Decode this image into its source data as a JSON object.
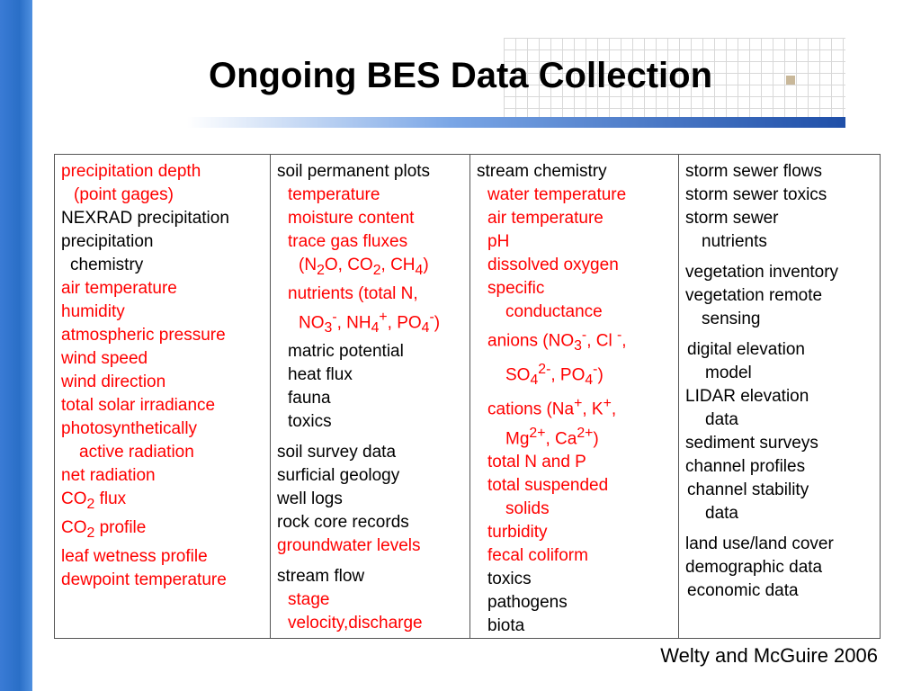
{
  "title": "Ongoing BES Data Collection",
  "credit": "Welty and McGuire 2006",
  "colors": {
    "highlight": "#ff0000",
    "normal": "#000000",
    "accent_bar": "#2a6fc7"
  },
  "columns": [
    {
      "lines": [
        {
          "t": "precipitation depth",
          "red": true
        },
        {
          "t": "(point gages)",
          "red": true,
          "ind": 14
        },
        {
          "t": "NEXRAD precipitation"
        },
        {
          "t": "precipitation"
        },
        {
          "t": "chemistry",
          "ind": 10
        },
        {
          "t": "air temperature",
          "red": true
        },
        {
          "t": "humidity",
          "red": true
        },
        {
          "t": "atmospheric pressure",
          "red": true
        },
        {
          "t": "wind speed",
          "red": true
        },
        {
          "t": "wind direction",
          "red": true
        },
        {
          "t": "total solar irradiance",
          "red": true
        },
        {
          "t": "photosynthetically",
          "red": true
        },
        {
          "t": "active radiation",
          "red": true,
          "ind": 20
        },
        {
          "t": "net radiation",
          "red": true
        },
        {
          "h": "CO<sub>2</sub> flux",
          "red": true
        },
        {
          "h": "CO<sub>2</sub> profile",
          "red": true
        },
        {
          "t": "leaf wetness profile",
          "red": true
        },
        {
          "t": "dewpoint temperature",
          "red": true
        }
      ]
    },
    {
      "lines": [
        {
          "t": "soil permanent plots"
        },
        {
          "t": "temperature",
          "red": true,
          "ind": 12
        },
        {
          "t": "moisture content",
          "red": true,
          "ind": 12
        },
        {
          "t": "trace gas fluxes",
          "red": true,
          "ind": 12
        },
        {
          "h": "(N<sub>2</sub>O, CO<sub>2</sub>, CH<sub>4</sub>)",
          "red": true,
          "ind": 24
        },
        {
          "t": "nutrients (total N,",
          "red": true,
          "ind": 12
        },
        {
          "h": "NO<sub>3</sub><sup>-</sup>, NH<sub>4</sub><sup>+</sup>, PO<sub>4</sub><sup>-</sup>)",
          "red": true,
          "ind": 24
        },
        {
          "t": "matric potential",
          "ind": 12
        },
        {
          "t": "heat flux",
          "ind": 12
        },
        {
          "t": "fauna",
          "ind": 12
        },
        {
          "t": "toxics",
          "ind": 12
        },
        {
          "t": "soil survey data",
          "gap": true
        },
        {
          "t": "surficial geology"
        },
        {
          "t": "well logs"
        },
        {
          "t": "rock core records"
        },
        {
          "t": "groundwater levels",
          "red": true
        },
        {
          "t": "stream flow",
          "gap": true
        },
        {
          "t": "stage",
          "red": true,
          "ind": 12
        },
        {
          "t": "velocity,discharge",
          "red": true,
          "ind": 12
        }
      ]
    },
    {
      "lines": [
        {
          "t": "stream chemistry"
        },
        {
          "t": "water temperature",
          "red": true,
          "ind": 12
        },
        {
          "t": "air temperature",
          "red": true,
          "ind": 12
        },
        {
          "t": "pH",
          "red": true,
          "ind": 12
        },
        {
          "t": "dissolved oxygen",
          "red": true,
          "ind": 12
        },
        {
          "t": "specific",
          "red": true,
          "ind": 12
        },
        {
          "t": "conductance",
          "red": true,
          "ind": 32
        },
        {
          "h": "anions (NO<sub>3</sub><sup>-</sup>, Cl <sup>-</sup>,",
          "red": true,
          "ind": 12
        },
        {
          "h": "SO<sub>4</sub><sup>2-</sup>, PO<sub>4</sub><sup>-</sup>)",
          "red": true,
          "ind": 32
        },
        {
          "h": "cations (Na<sup>+</sup>, K<sup>+</sup>,",
          "red": true,
          "ind": 12
        },
        {
          "h": "Mg<sup>2+</sup>, Ca<sup>2+</sup>)",
          "red": true,
          "ind": 32
        },
        {
          "t": "total N and P",
          "red": true,
          "ind": 12
        },
        {
          "t": "total suspended",
          "red": true,
          "ind": 12
        },
        {
          "t": "solids",
          "red": true,
          "ind": 32
        },
        {
          "t": "turbidity",
          "red": true,
          "ind": 12
        },
        {
          "t": "fecal coliform",
          "red": true,
          "ind": 12
        },
        {
          "t": "toxics",
          "ind": 12
        },
        {
          "t": "pathogens",
          "ind": 12
        },
        {
          "t": "biota",
          "ind": 12
        }
      ]
    },
    {
      "lines": [
        {
          "t": "storm sewer flows"
        },
        {
          "t": "storm sewer toxics"
        },
        {
          "t": "storm sewer"
        },
        {
          "t": "nutrients",
          "ind": 18
        },
        {
          "t": "vegetation inventory",
          "gap": true
        },
        {
          "t": "vegetation remote"
        },
        {
          "t": "sensing",
          "ind": 18
        },
        {
          "t": "digital elevation",
          "gap": true,
          "ind": 2
        },
        {
          "t": "model",
          "ind": 22
        },
        {
          "t": "LIDAR elevation"
        },
        {
          "t": "data",
          "ind": 22
        },
        {
          "t": "sediment surveys"
        },
        {
          "t": "channel profiles"
        },
        {
          "t": "channel stability",
          "ind": 2
        },
        {
          "t": "data",
          "ind": 22
        },
        {
          "t": "land use/land cover",
          "gap": true
        },
        {
          "t": "demographic data"
        },
        {
          "t": "economic data",
          "ind": 2
        }
      ]
    }
  ]
}
